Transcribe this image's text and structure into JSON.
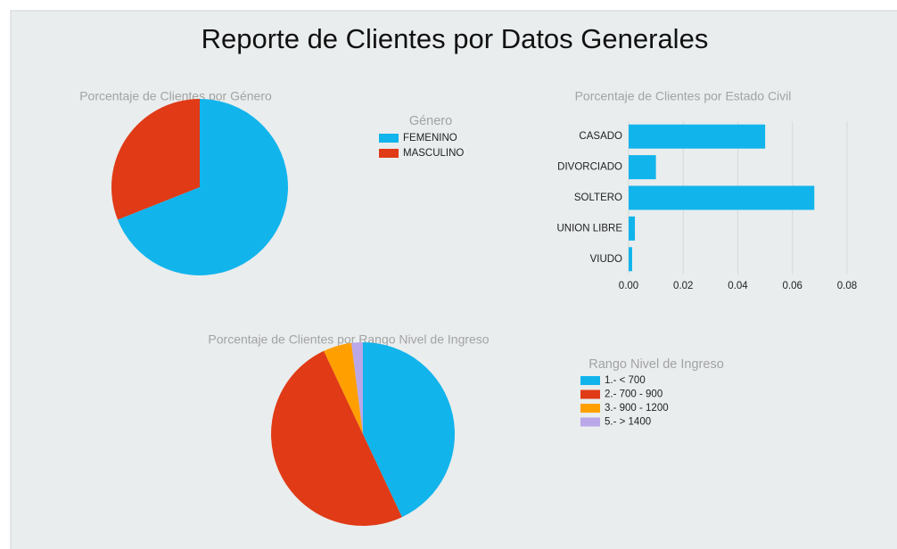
{
  "title": "Reporte de Clientes por Datos Generales",
  "chart_data": [
    {
      "type": "pie",
      "title": "Porcentaje de Clientes por Género",
      "legend_title": "Género",
      "categories": [
        "FEMENINO",
        "MASCULINO"
      ],
      "values": [
        69,
        31
      ],
      "colors": [
        "#12b4ec",
        "#e03a16"
      ]
    },
    {
      "type": "bar",
      "orientation": "horizontal",
      "title": "Porcentaje de Clientes por Estado Civil",
      "categories": [
        "CASADO",
        "DIVORCIADO",
        "SOLTERO",
        "UNION LIBRE",
        "VIUDO"
      ],
      "values": [
        0.05,
        0.01,
        0.068,
        0.0023,
        0.0013
      ],
      "color": "#12b4ec",
      "xlim": [
        0,
        0.08
      ],
      "xticks": [
        {
          "value": 0,
          "label": "0.00"
        },
        {
          "value": 0.02,
          "label": "0.02"
        },
        {
          "value": 0.04,
          "label": "0.04"
        },
        {
          "value": 0.06,
          "label": "0.06"
        },
        {
          "value": 0.08,
          "label": "0.08"
        }
      ],
      "grid": true
    },
    {
      "type": "pie",
      "title": "Porcentaje de Clientes por Rango Nivel de Ingreso",
      "legend_title": "Rango Nivel de Ingreso",
      "categories": [
        "1.- < 700",
        "2.- 700 - 900",
        "3.- 900 - 1200",
        "5.- > 1400"
      ],
      "values": [
        43,
        50,
        5,
        2
      ],
      "colors": [
        "#12b4ec",
        "#e03a16",
        "#ff9f00",
        "#b9a7e8"
      ]
    }
  ]
}
